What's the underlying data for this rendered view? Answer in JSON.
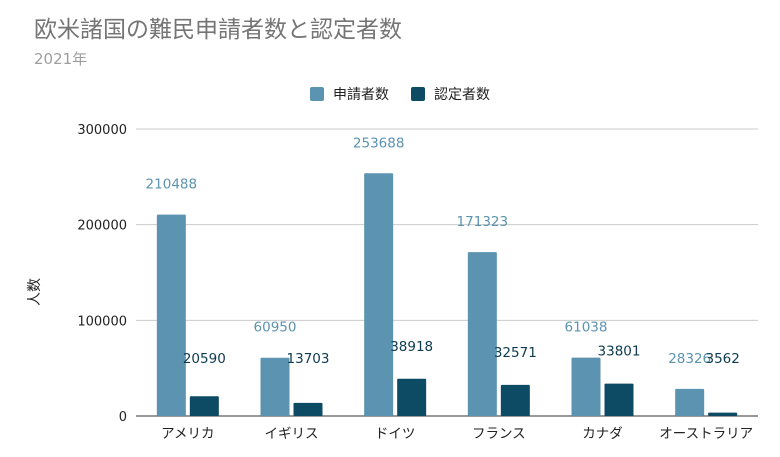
{
  "colors": {
    "title": "#757575",
    "subtitle": "#9e9e9e",
    "applicants": "#5b93b0",
    "recognized": "#0d4a63",
    "applicants_label": "#5b93b0",
    "recognized_label": "#0d3a4f",
    "gridline": "#cccccc",
    "axis_text": "#222222"
  },
  "chart_data": {
    "type": "bar",
    "title": "欧米諸国の難民申請者数と認定者数",
    "subtitle": "2021年",
    "ylabel": "人数",
    "xlabel": "",
    "ylim": [
      0,
      300000
    ],
    "yticks": [
      "0",
      "100000",
      "200000",
      "300000"
    ],
    "grid": true,
    "legend_position": "top",
    "categories": [
      "アメリカ",
      "イギリス",
      "ドイツ",
      "フランス",
      "カナダ",
      "オーストラリア"
    ],
    "series": [
      {
        "name": "申請者数",
        "values": [
          210488,
          60950,
          253688,
          171323,
          61038,
          28326
        ]
      },
      {
        "name": "認定者数",
        "values": [
          20590,
          13703,
          38918,
          32571,
          33801,
          3562
        ]
      }
    ]
  }
}
